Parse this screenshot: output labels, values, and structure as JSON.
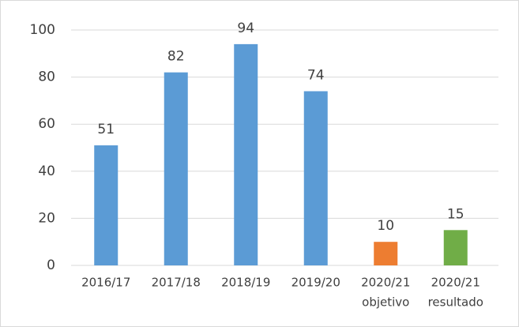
{
  "chart_data": {
    "type": "bar",
    "categories": [
      [
        "2016/17"
      ],
      [
        "2017/18"
      ],
      [
        "2018/19"
      ],
      [
        "2019/20"
      ],
      [
        "2020/21",
        "objetivo"
      ],
      [
        "2020/21",
        "resultado"
      ]
    ],
    "values": [
      51,
      82,
      94,
      74,
      10,
      15
    ],
    "colors": [
      "#5b9bd5",
      "#5b9bd5",
      "#5b9bd5",
      "#5b9bd5",
      "#ed7d31",
      "#70ad47"
    ],
    "ylim": [
      0,
      100
    ],
    "yticks": [
      0,
      20,
      40,
      60,
      80,
      100
    ],
    "grid": true
  }
}
